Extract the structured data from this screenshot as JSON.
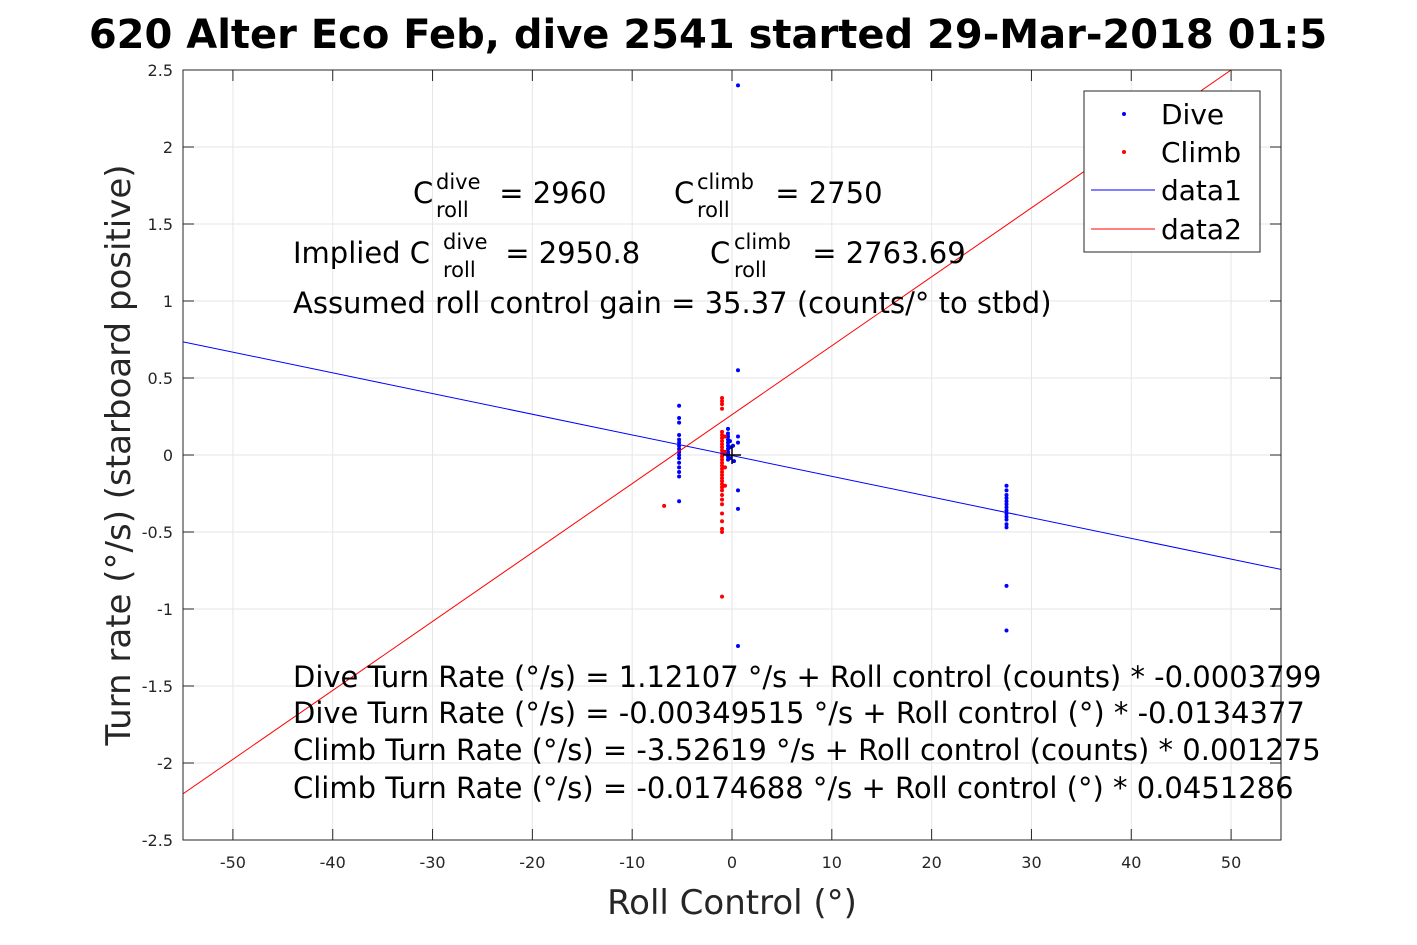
{
  "chart_data": {
    "type": "scatter",
    "title": "620 Alter Eco Feb, dive 2541 started 29-Mar-2018 01:5",
    "xlabel": "Roll Control (°)",
    "ylabel": "Turn rate (°/s) (starboard positive)",
    "xlim": [
      -55,
      55
    ],
    "ylim": [
      -2.5,
      2.5
    ],
    "xticks": [
      -50,
      -40,
      -30,
      -20,
      -10,
      0,
      10,
      20,
      30,
      40,
      50
    ],
    "yticks": [
      -2.5,
      -2,
      -1.5,
      -1,
      -0.5,
      0,
      0.5,
      1,
      1.5,
      2,
      2.5
    ],
    "xtick_labels": [
      "-50",
      "-40",
      "-30",
      "-20",
      "-10",
      "0",
      "10",
      "20",
      "30",
      "40",
      "50"
    ],
    "ytick_labels": [
      "-2.5",
      "-2",
      "-1.5",
      "-1",
      "-0.5",
      "0",
      "0.5",
      "1",
      "1.5",
      "2",
      "2.5"
    ],
    "grid": true,
    "legend_position": "top-right",
    "colors": {
      "dive": "#0000ff",
      "climb": "#ff0000",
      "axes": "#262626",
      "grid": "#e6e6e6"
    },
    "series": [
      {
        "name": "Dive",
        "kind": "points",
        "color": "#0000ff",
        "points": [
          [
            -5.3,
            0.32
          ],
          [
            -5.3,
            0.24
          ],
          [
            -5.3,
            0.21
          ],
          [
            -5.3,
            0.13
          ],
          [
            -5.3,
            0.1
          ],
          [
            -5.3,
            0.08
          ],
          [
            -5.3,
            0.06
          ],
          [
            -5.3,
            0.04
          ],
          [
            -5.3,
            0.02
          ],
          [
            -5.3,
            0.0
          ],
          [
            -5.3,
            -0.02
          ],
          [
            -5.3,
            -0.05
          ],
          [
            -5.3,
            -0.08
          ],
          [
            -5.3,
            -0.11
          ],
          [
            -5.3,
            -0.14
          ],
          [
            -5.3,
            -0.3
          ],
          [
            -0.4,
            0.17
          ],
          [
            -0.4,
            0.14
          ],
          [
            -0.4,
            0.12
          ],
          [
            -0.4,
            0.1
          ],
          [
            -0.4,
            0.08
          ],
          [
            -0.4,
            0.06
          ],
          [
            -0.4,
            0.04
          ],
          [
            -0.4,
            0.02
          ],
          [
            -0.4,
            0.01
          ],
          [
            -0.4,
            -0.01
          ],
          [
            -0.4,
            -0.03
          ],
          [
            -0.2,
            0.09
          ],
          [
            -0.2,
            0.05
          ],
          [
            -0.2,
            -0.02
          ],
          [
            0.1,
            0.06
          ],
          [
            0.2,
            -0.04
          ],
          [
            0.6,
            2.4
          ],
          [
            0.6,
            0.55
          ],
          [
            0.6,
            0.12
          ],
          [
            0.6,
            0.08
          ],
          [
            0.6,
            -0.23
          ],
          [
            0.6,
            -0.35
          ],
          [
            0.6,
            -1.24
          ],
          [
            27.5,
            -0.2
          ],
          [
            27.5,
            -0.23
          ],
          [
            27.5,
            -0.26
          ],
          [
            27.5,
            -0.28
          ],
          [
            27.5,
            -0.3
          ],
          [
            27.5,
            -0.32
          ],
          [
            27.5,
            -0.34
          ],
          [
            27.5,
            -0.36
          ],
          [
            27.5,
            -0.38
          ],
          [
            27.5,
            -0.4
          ],
          [
            27.5,
            -0.42
          ],
          [
            27.5,
            -0.45
          ],
          [
            27.5,
            -0.47
          ],
          [
            27.5,
            -0.85
          ],
          [
            27.5,
            -1.14
          ]
        ]
      },
      {
        "name": "Climb",
        "kind": "points",
        "color": "#ff0000",
        "points": [
          [
            -1.0,
            0.37
          ],
          [
            -1.0,
            0.35
          ],
          [
            -1.0,
            0.33
          ],
          [
            -1.0,
            0.3
          ],
          [
            -1.0,
            0.15
          ],
          [
            -1.0,
            0.13
          ],
          [
            -1.0,
            0.11
          ],
          [
            -1.0,
            0.09
          ],
          [
            -1.0,
            0.07
          ],
          [
            -1.0,
            0.05
          ],
          [
            -1.0,
            0.03
          ],
          [
            -1.0,
            0.01
          ],
          [
            -1.0,
            -0.01
          ],
          [
            -1.0,
            -0.03
          ],
          [
            -1.0,
            -0.05
          ],
          [
            -1.0,
            -0.07
          ],
          [
            -1.0,
            -0.09
          ],
          [
            -1.0,
            -0.11
          ],
          [
            -1.0,
            -0.13
          ],
          [
            -1.0,
            -0.15
          ],
          [
            -1.0,
            -0.17
          ],
          [
            -1.0,
            -0.19
          ],
          [
            -1.0,
            -0.21
          ],
          [
            -1.0,
            -0.23
          ],
          [
            -1.0,
            -0.26
          ],
          [
            -1.0,
            -0.29
          ],
          [
            -1.0,
            -0.32
          ],
          [
            -1.0,
            -0.38
          ],
          [
            -1.0,
            -0.43
          ],
          [
            -1.0,
            -0.48
          ],
          [
            -1.0,
            -0.5
          ],
          [
            -1.0,
            -0.92
          ],
          [
            -0.7,
            0.12
          ],
          [
            -0.7,
            0.02
          ],
          [
            -0.7,
            -0.08
          ],
          [
            -0.7,
            -0.2
          ],
          [
            -6.8,
            -0.33
          ]
        ]
      },
      {
        "name": "data1",
        "kind": "line",
        "color": "#0000ff",
        "points": [
          [
            -55,
            0.735
          ],
          [
            55,
            -0.743
          ]
        ]
      },
      {
        "name": "data2",
        "kind": "line",
        "color": "#ff0000",
        "points": [
          [
            -55,
            -2.2
          ],
          [
            50,
            2.5
          ]
        ]
      }
    ],
    "marker": {
      "x": 0,
      "y": 0,
      "color": "#000000"
    },
    "legend": [
      "Dive",
      "Climb",
      "data1",
      "data2"
    ]
  },
  "annotations": {
    "line1": {
      "c1_base": "C",
      "c1_sup": "dive",
      "c1_sub": "roll",
      "c1_rest": " = 2960",
      "c2_base": "C",
      "c2_sup": "climb",
      "c2_sub": "roll",
      "c2_rest": " = 2750"
    },
    "line2": {
      "prefix": "Implied C",
      "c1_sup": "dive",
      "c1_sub": "roll",
      "c1_rest": " = 2950.8",
      "c2_base": "C",
      "c2_sup": "climb",
      "c2_sub": "roll",
      "c2_rest": " = 2763.69"
    },
    "line3": "Assumed roll control gain = 35.37 (counts/° to stbd)",
    "eq1": "Dive Turn Rate (°/s) = 1.12107 °/s + Roll control (counts) * -0.0003799",
    "eq2": "Dive Turn Rate (°/s) = -0.00349515 °/s + Roll control (°) * -0.0134377",
    "eq3": "Climb Turn Rate (°/s) = -3.52619 °/s + Roll control (counts) * 0.001275",
    "eq4": "Climb Turn Rate (°/s) = -0.0174688 °/s + Roll control (°) * 0.0451286"
  }
}
